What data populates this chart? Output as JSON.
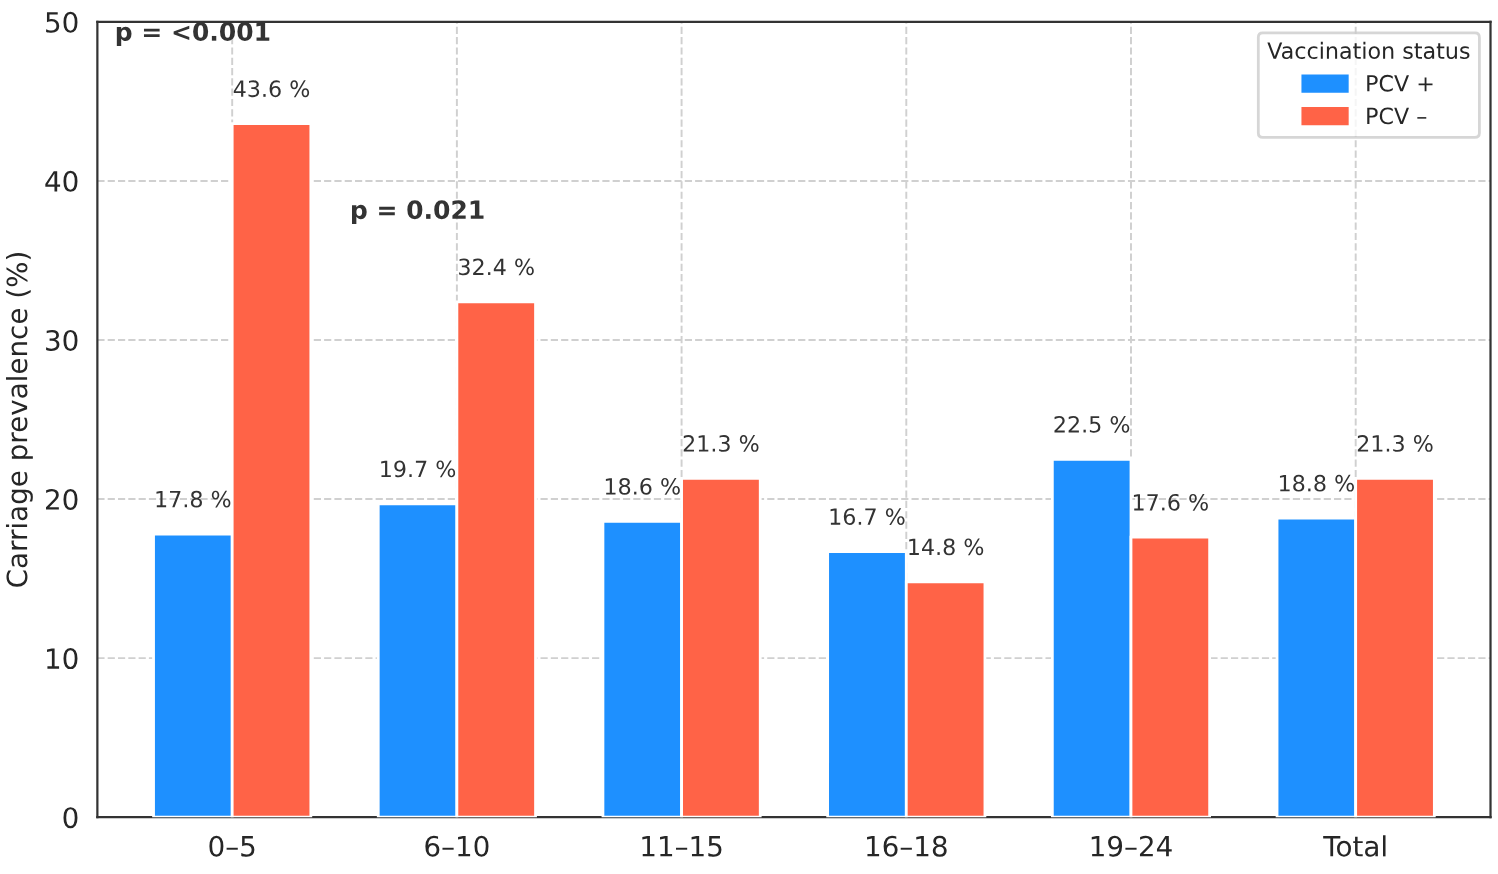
{
  "chart_data": {
    "type": "bar",
    "ylabel": "Carriage prevalence (%)",
    "legend_title": "Vaccination status",
    "categories": [
      "0–5",
      "6–10",
      "11–15",
      "16–18",
      "19–24",
      "Total"
    ],
    "series": [
      {
        "name": "PCV +",
        "color": "#1e90ff",
        "values": [
          17.8,
          19.7,
          18.6,
          16.7,
          22.5,
          18.8
        ],
        "value_labels": [
          "17.8 %",
          "19.7 %",
          "18.6 %",
          "16.7 %",
          "22.5 %",
          "18.8 %"
        ]
      },
      {
        "name": "PCV –",
        "color": "#ff6347",
        "values": [
          43.6,
          32.4,
          21.3,
          14.8,
          17.6,
          21.3
        ],
        "value_labels": [
          "43.6 %",
          "32.4 %",
          "21.3 %",
          "14.8 %",
          "17.6 %",
          "21.3 %"
        ]
      }
    ],
    "ylim": [
      0,
      50
    ],
    "yticks": [
      0,
      10,
      20,
      30,
      40,
      50
    ],
    "annotations": [
      "p = <0.001",
      "p = 0.021"
    ],
    "grid": true,
    "legend": "top right"
  }
}
